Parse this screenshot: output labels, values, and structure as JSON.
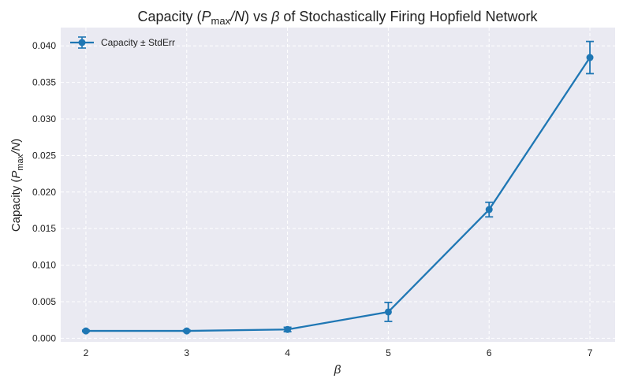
{
  "chart_data": {
    "type": "line",
    "title": "Capacity (P_max/N) vs β of Stochastically Firing Hopfield Network",
    "title_parts": {
      "prefix": "Capacity (",
      "P": "P",
      "max": "max",
      "slash_n": "/N",
      "mid": ") vs ",
      "beta": "β",
      "suffix": " of Stochastically Firing Hopfield Network"
    },
    "xlabel": "β",
    "ylabel": "Capacity (P_max/N)",
    "ylabel_parts": {
      "prefix": "Capacity (",
      "P": "P",
      "max": "max",
      "slash_n": "/N",
      "suffix": ")"
    },
    "x_ticks": [
      "2",
      "3",
      "4",
      "5",
      "6",
      "7"
    ],
    "y_ticks": [
      "0.000",
      "0.005",
      "0.010",
      "0.015",
      "0.020",
      "0.025",
      "0.030",
      "0.035",
      "0.040"
    ],
    "xlim": [
      1.75,
      7.25
    ],
    "ylim": [
      -0.0005,
      0.0425
    ],
    "grid": true,
    "legend_position": "top-left",
    "series": [
      {
        "name": "Capacity ± StdErr",
        "color": "#1f77b4",
        "x": [
          2,
          3,
          4,
          5,
          6,
          7
        ],
        "values": [
          0.001,
          0.001,
          0.0012,
          0.0036,
          0.0176,
          0.0384
        ],
        "errors": [
          0.0001,
          0.0001,
          0.0003,
          0.0013,
          0.001,
          0.0022
        ]
      }
    ],
    "colors": {
      "plot_background": "#eaeaf2",
      "grid": "#ffffff",
      "series": "#1f77b4"
    }
  }
}
